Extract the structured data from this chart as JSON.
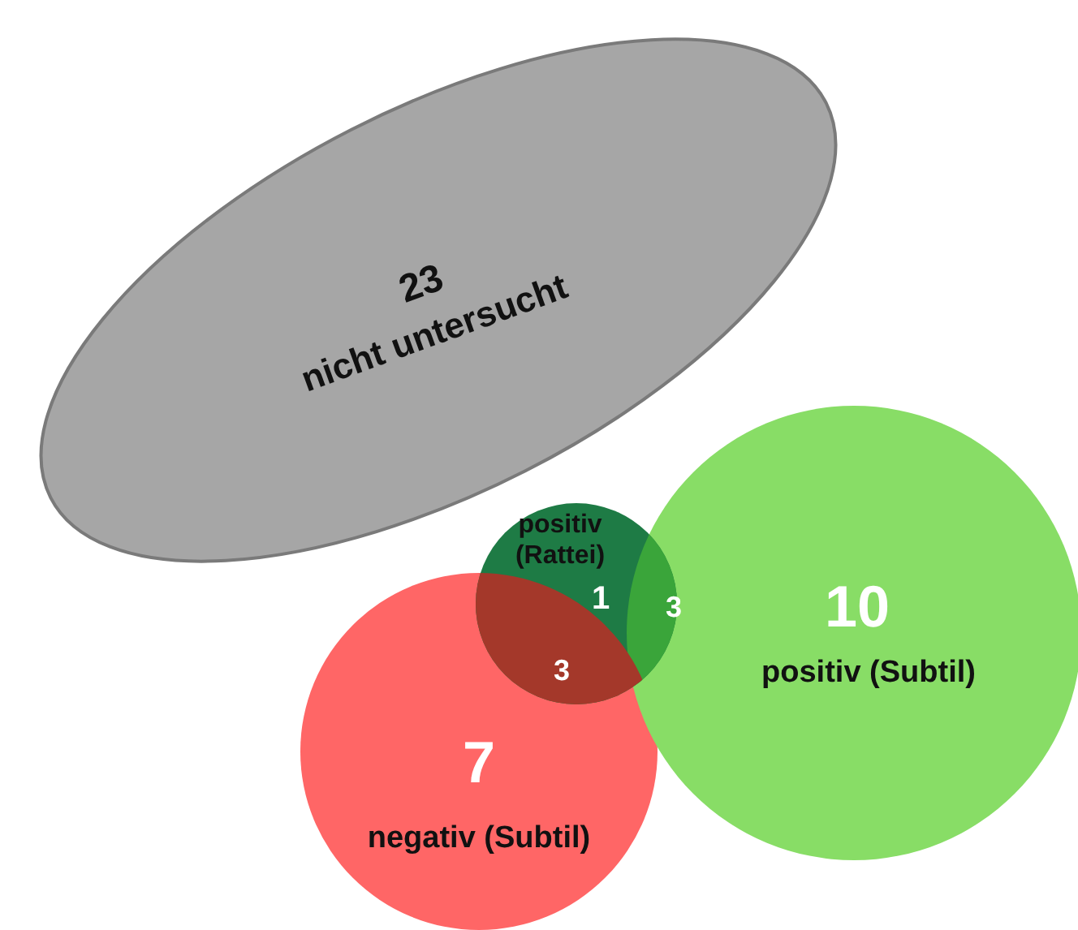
{
  "chart_data": {
    "type": "other",
    "categories": [
      "nicht untersucht",
      "positiv (Rattei)",
      "negativ (Subtil)",
      "positiv (Subtil)"
    ],
    "values": [
      23,
      1,
      7,
      10
    ],
    "colors": [
      "#a6a6a6",
      "#1e7b45",
      "#ff6666",
      "#88dd66"
    ],
    "annotations": [
      "3",
      "3"
    ],
    "data_labels": true
  }
}
